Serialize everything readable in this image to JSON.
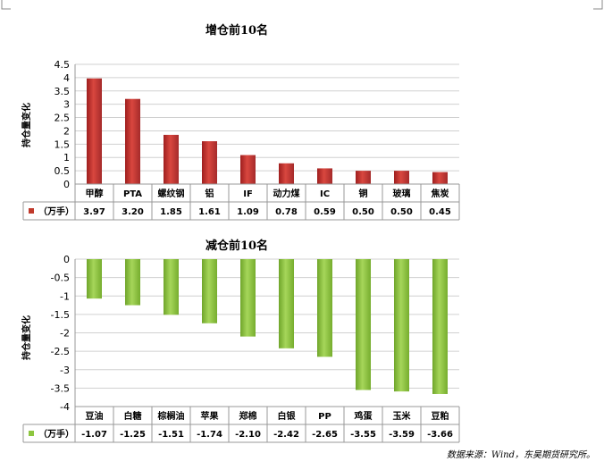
{
  "source": "数据来源：Wind，东吴期货研究所。",
  "chart_data": [
    {
      "type": "bar",
      "title": "增仓前10名",
      "ylabel": "持仓量变化",
      "series_name": "（万手）",
      "color": "#c0392b",
      "ylim": [
        0,
        4.5
      ],
      "yticks": [
        "0",
        "0.5",
        "1",
        "1.5",
        "2",
        "2.5",
        "3",
        "3.5",
        "4",
        "4.5"
      ],
      "categories": [
        "甲醇",
        "PTA",
        "螺纹钢",
        "铝",
        "IF",
        "动力煤",
        "IC",
        "铜",
        "玻璃",
        "焦炭"
      ],
      "values": [
        3.97,
        3.2,
        1.85,
        1.61,
        1.09,
        0.78,
        0.59,
        0.5,
        0.5,
        0.45
      ],
      "value_labels": [
        "3.97",
        "3.20",
        "1.85",
        "1.61",
        "1.09",
        "0.78",
        "0.59",
        "0.50",
        "0.50",
        "0.45"
      ]
    },
    {
      "type": "bar",
      "title": "减仓前10名",
      "ylabel": "持仓量变化",
      "series_name": "（万手）",
      "color": "#8dc63f",
      "ylim": [
        -4,
        0
      ],
      "yticks": [
        "0",
        "-0.5",
        "-1",
        "-1.5",
        "-2",
        "-2.5",
        "-3",
        "-3.5",
        "-4"
      ],
      "categories": [
        "豆油",
        "白糖",
        "棕榈油",
        "苹果",
        "郑棉",
        "白银",
        "PP",
        "鸡蛋",
        "玉米",
        "豆粕"
      ],
      "values": [
        -1.07,
        -1.25,
        -1.51,
        -1.74,
        -2.1,
        -2.42,
        -2.65,
        -3.55,
        -3.59,
        -3.66
      ],
      "value_labels": [
        "-1.07",
        "-1.25",
        "-1.51",
        "-1.74",
        "-2.10",
        "-2.42",
        "-2.65",
        "-3.55",
        "-3.59",
        "-3.66"
      ]
    }
  ]
}
